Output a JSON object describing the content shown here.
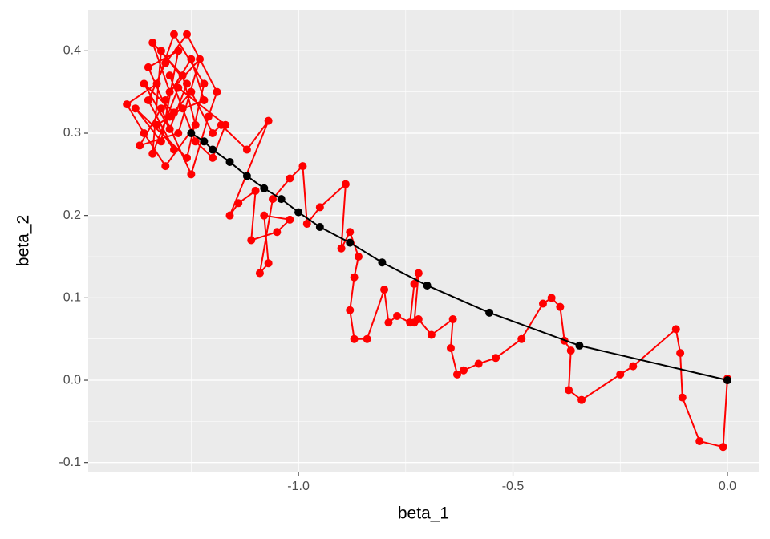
{
  "chart_data": {
    "type": "scatter",
    "x_label": "beta_1",
    "y_label": "beta_2",
    "xlim": [
      -1.49,
      0.073
    ],
    "ylim": [
      -0.111,
      0.45
    ],
    "xticks": [
      {
        "value": -1.0,
        "label": "-1.0"
      },
      {
        "value": -0.5,
        "label": "-0.5"
      },
      {
        "value": 0.0,
        "label": "0.0"
      }
    ],
    "yticks": [
      {
        "value": -0.1,
        "label": "-0.1"
      },
      {
        "value": 0.0,
        "label": "0.0"
      },
      {
        "value": 0.1,
        "label": "0.1"
      },
      {
        "value": 0.2,
        "label": "0.2"
      },
      {
        "value": 0.3,
        "label": "0.3"
      },
      {
        "value": 0.4,
        "label": "0.4"
      }
    ],
    "x_minor_grid": [
      -1.25,
      -0.75,
      -0.25
    ],
    "y_minor_grid": [
      -0.05,
      0.05,
      0.15,
      0.25,
      0.35
    ],
    "grid": true,
    "series": [
      {
        "color": "#ff0000",
        "x": [
          0.0,
          0.0,
          -0.01,
          -0.065,
          -0.105,
          -0.11,
          -0.12,
          -0.22,
          -0.25,
          -0.34,
          -0.37,
          -0.365,
          -0.38,
          -0.39,
          -0.41,
          -0.43,
          -0.48,
          -0.54,
          -0.58,
          -0.615,
          -0.63,
          -0.645,
          -0.64,
          -0.69,
          -0.72,
          -0.73,
          -0.72,
          -0.73,
          -0.74,
          -0.77,
          -0.79,
          -0.8,
          -0.84,
          -0.87,
          -0.88,
          -0.87,
          -0.86,
          -0.88,
          -0.9,
          -0.89,
          -0.95,
          -0.98,
          -0.99,
          -1.02,
          -1.06,
          -1.09,
          -1.07,
          -1.08,
          -1.02,
          -1.05,
          -1.11,
          -1.1,
          -1.14,
          -1.16,
          -1.07,
          -1.12,
          -1.18,
          -1.2,
          -1.25,
          -1.3,
          -1.35,
          -1.28,
          -1.32,
          -1.38,
          -1.26,
          -1.22,
          -1.29,
          -1.33,
          -1.4,
          -1.36,
          -1.31,
          -1.24,
          -1.27,
          -1.34,
          -1.3,
          -1.23,
          -1.28,
          -1.37,
          -1.32,
          -1.25,
          -1.21,
          -1.19,
          -1.26,
          -1.31,
          -1.35,
          -1.29,
          -1.33,
          -1.27,
          -1.3,
          -1.24,
          -1.2,
          -1.17,
          -1.28,
          -1.34,
          -1.32,
          -1.26,
          -1.3,
          -1.36,
          -1.29,
          -1.22,
          -1.25,
          -1.31
        ],
        "y": [
          0.0,
          0.002,
          -0.081,
          -0.074,
          -0.021,
          0.033,
          0.062,
          0.017,
          0.007,
          -0.024,
          -0.012,
          0.036,
          0.048,
          0.089,
          0.1,
          0.093,
          0.05,
          0.027,
          0.02,
          0.012,
          0.007,
          0.039,
          0.074,
          0.055,
          0.074,
          0.07,
          0.13,
          0.117,
          0.07,
          0.078,
          0.07,
          0.11,
          0.05,
          0.05,
          0.085,
          0.125,
          0.15,
          0.18,
          0.16,
          0.238,
          0.21,
          0.19,
          0.26,
          0.245,
          0.22,
          0.13,
          0.142,
          0.2,
          0.195,
          0.18,
          0.17,
          0.23,
          0.215,
          0.2,
          0.315,
          0.28,
          0.31,
          0.3,
          0.35,
          0.32,
          0.38,
          0.4,
          0.29,
          0.33,
          0.27,
          0.36,
          0.42,
          0.36,
          0.335,
          0.3,
          0.26,
          0.31,
          0.37,
          0.41,
          0.35,
          0.39,
          0.3,
          0.285,
          0.33,
          0.25,
          0.32,
          0.35,
          0.42,
          0.385,
          0.34,
          0.28,
          0.31,
          0.33,
          0.37,
          0.29,
          0.27,
          0.31,
          0.355,
          0.275,
          0.4,
          0.36,
          0.305,
          0.36,
          0.325,
          0.34,
          0.39,
          0.34
        ]
      },
      {
        "color": "#000000",
        "x": [
          0.0,
          -0.345,
          -0.555,
          -0.7,
          -0.805,
          -0.88,
          -0.95,
          -1.0,
          -1.04,
          -1.08,
          -1.12,
          -1.16,
          -1.2,
          -1.22,
          -1.25
        ],
        "y": [
          0.0,
          0.042,
          0.082,
          0.115,
          0.143,
          0.167,
          0.186,
          0.204,
          0.22,
          0.233,
          0.248,
          0.265,
          0.28,
          0.29,
          0.3
        ]
      }
    ]
  }
}
